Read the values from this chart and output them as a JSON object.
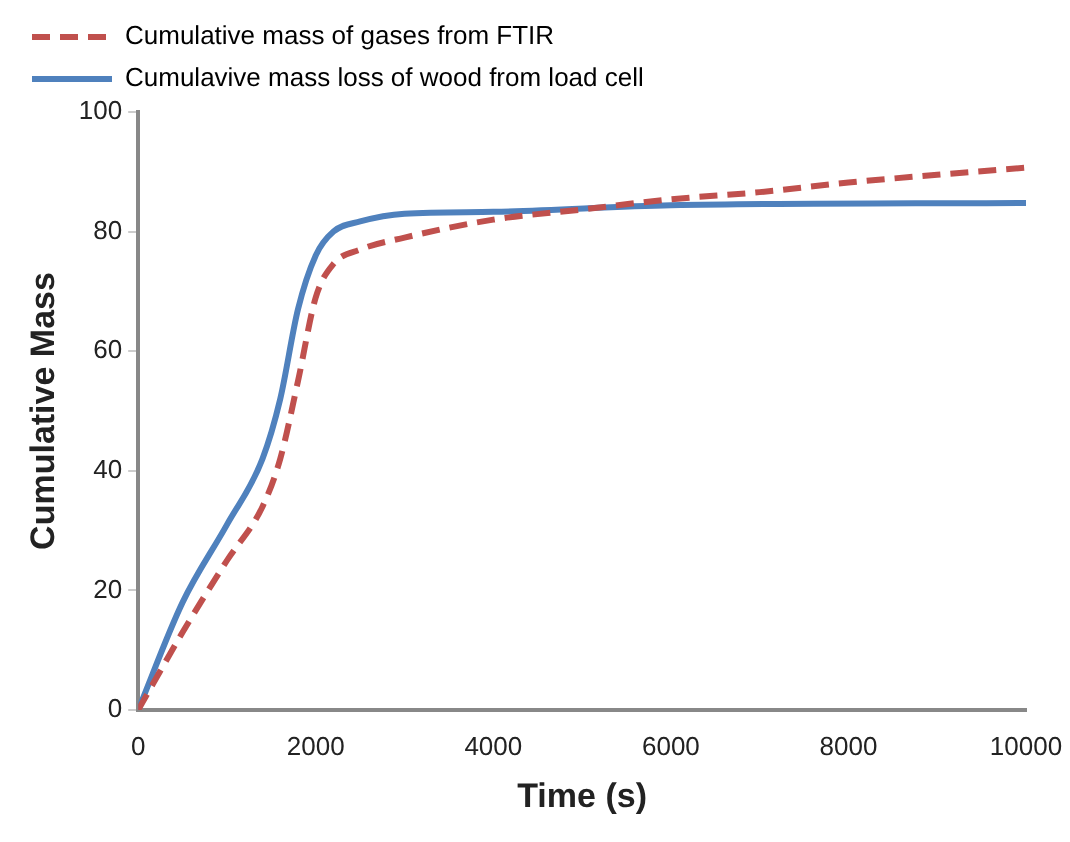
{
  "chart_data": {
    "type": "line",
    "xlabel": "Time (s)",
    "ylabel": "Cumulative Mass",
    "xlim": [
      0,
      10000
    ],
    "xticks": [
      0,
      2000,
      4000,
      6000,
      8000,
      10000
    ],
    "ylim": [
      0,
      100
    ],
    "yticks": [
      0,
      20,
      40,
      60,
      80,
      100
    ],
    "grid": false,
    "legend": "top",
    "marker": "none",
    "series": [
      {
        "name": "Cumulative mass of gases from FTIR",
        "color": "#c0504d",
        "line_style": "dashed",
        "x": [
          0,
          500,
          1000,
          1400,
          1600,
          1800,
          2000,
          2200,
          2500,
          3000,
          4000,
          5000,
          6000,
          7000,
          8000,
          9000,
          10000
        ],
        "values": [
          0,
          13,
          25,
          34,
          42,
          55,
          69,
          74.6,
          77,
          79,
          82,
          83.7,
          85.4,
          86.6,
          88.2,
          89.5,
          90.7
        ]
      },
      {
        "name": "Cumulavive mass loss of wood from load cell",
        "color": "#4f81bd",
        "line_style": "solid",
        "x": [
          0,
          500,
          1000,
          1400,
          1600,
          1800,
          2000,
          2200,
          2500,
          3000,
          4000,
          6000,
          10000
        ],
        "values": [
          0,
          18,
          31,
          42,
          52,
          67,
          76,
          80,
          81.7,
          83,
          83.3,
          84.4,
          84.8
        ]
      }
    ]
  }
}
